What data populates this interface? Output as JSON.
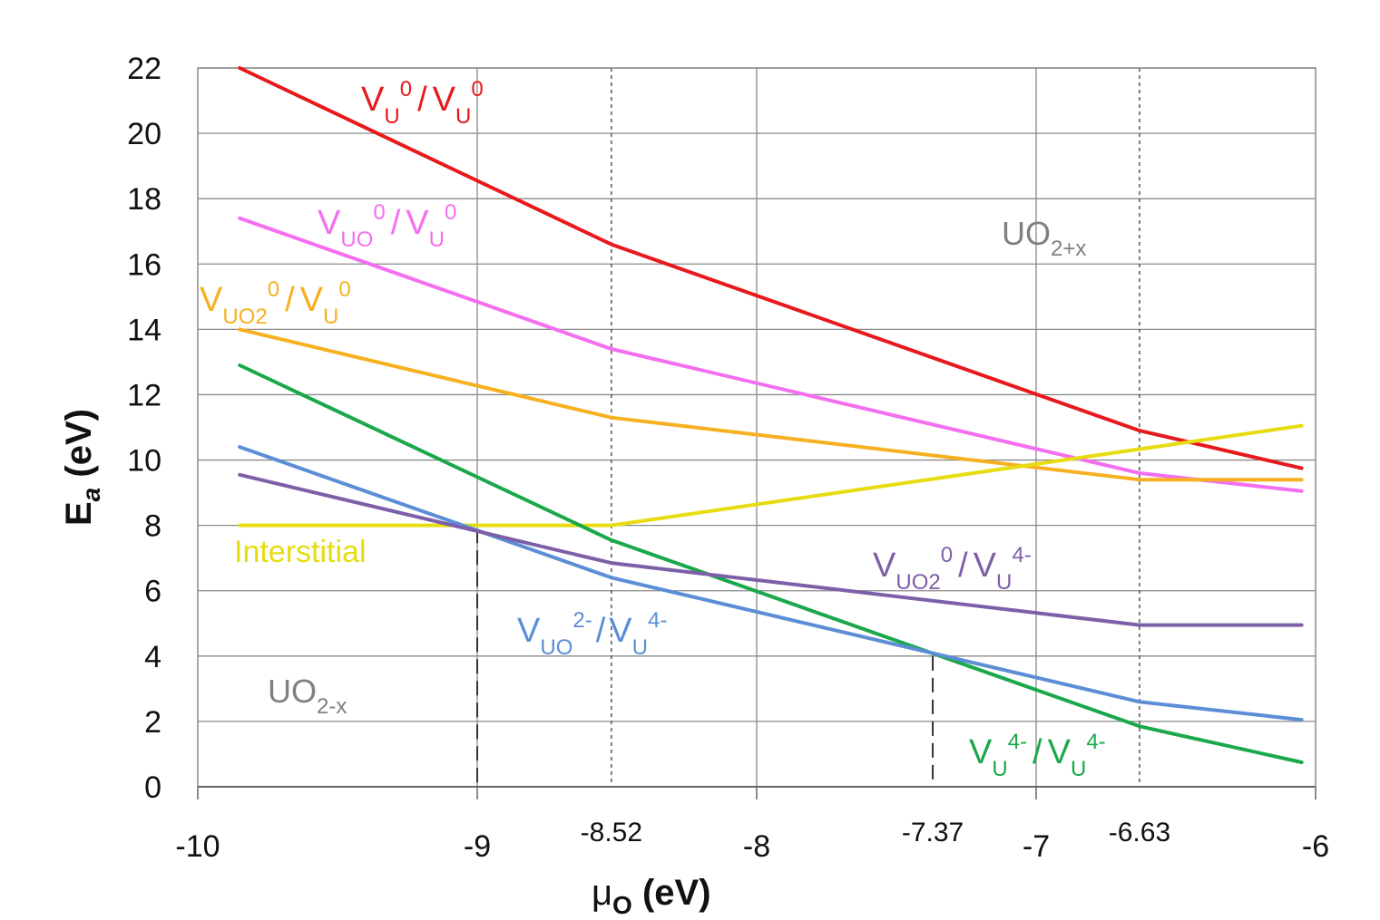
{
  "chart_data": {
    "type": "line",
    "xlabel": "μO (eV)",
    "ylabel": "Ea (eV)",
    "xlim": [
      -10,
      -6
    ],
    "ylim": [
      0,
      22
    ],
    "xticks": [
      -10,
      -9,
      -8,
      -7,
      -6
    ],
    "xtick_labels": [
      "-10",
      "-9",
      "-8",
      "-7",
      "-6"
    ],
    "yticks": [
      0,
      2,
      4,
      6,
      8,
      10,
      12,
      14,
      16,
      18,
      20,
      22
    ],
    "ytick_labels": [
      "0",
      "2",
      "4",
      "6",
      "8",
      "10",
      "12",
      "14",
      "16",
      "18",
      "20",
      "22"
    ],
    "extra_xticks": [
      -8.52,
      -7.37,
      -6.63
    ],
    "extra_xtick_labels": [
      "-8.52",
      "-7.37",
      "-6.63"
    ],
    "grid": true,
    "vlines_dotted": [
      -8.52,
      -6.63
    ],
    "vlines_dashed": [
      {
        "x": -9,
        "y_top": 7.9
      },
      {
        "x": -7.37,
        "y_top": 4.0
      }
    ],
    "series": [
      {
        "name": "V_U^0/V_U^0",
        "color": "#e8191c",
        "x": [
          -9.85,
          -8.52,
          -6.63,
          -6.05
        ],
        "y": [
          22,
          16.6,
          10.9,
          9.75
        ]
      },
      {
        "name": "V_UO^0/V_U^0",
        "color": "#f46ef0",
        "x": [
          -9.85,
          -8.52,
          -6.63,
          -6.05
        ],
        "y": [
          17.4,
          13.4,
          9.6,
          9.05
        ]
      },
      {
        "name": "V_UO2^0/V_U^0",
        "color": "#f6b020",
        "x": [
          -9.85,
          -8.52,
          -6.63,
          -6.05
        ],
        "y": [
          14,
          11.3,
          9.4,
          9.4
        ]
      },
      {
        "name": "Interstitial",
        "color": "#e6dc10",
        "x": [
          -9.85,
          -8.52,
          -6.05
        ],
        "y": [
          8,
          8,
          11.05
        ]
      },
      {
        "name": "V_U^4-/V_U^4-",
        "color": "#1aa84a",
        "x": [
          -9.85,
          -8.52,
          -6.63,
          -6.05
        ],
        "y": [
          12.9,
          7.55,
          1.85,
          0.75
        ]
      },
      {
        "name": "V_UO^2-/V_U^4-",
        "color": "#5b8ed6",
        "x": [
          -9.85,
          -8.52,
          -6.63,
          -6.05
        ],
        "y": [
          10.4,
          6.4,
          2.6,
          2.05
        ]
      },
      {
        "name": "V_UO2^0/V_U^4-",
        "color": "#7d5fa8",
        "x": [
          -9.85,
          -8.52,
          -6.63,
          -6.05
        ],
        "y": [
          9.55,
          6.85,
          4.95,
          4.95
        ]
      }
    ]
  },
  "labels": {
    "vu0": {
      "t1": "V",
      "s1": "U",
      "p1": "0",
      "t2": "/",
      "t3": "V",
      "s2": "U",
      "p2": "0"
    },
    "vuo0": {
      "t1": "V",
      "s1": "UO",
      "p1": "0",
      "t2": "/",
      "t3": "V",
      "s2": "U",
      "p2": "0"
    },
    "vuo20": {
      "t1": "V",
      "s1": "UO2",
      "p1": "0",
      "t2": "/",
      "t3": "V",
      "s2": "U",
      "p2": "0"
    },
    "interstitial": "Interstitial",
    "vuo2_vu4": {
      "t1": "V",
      "s1": "UO2",
      "p1": "0",
      "t2": "/",
      "t3": "V",
      "s2": "U",
      "p2": "4-"
    },
    "vuo_vu4": {
      "t1": "V",
      "s1": "UO",
      "p1": "2-",
      "t2": "/",
      "t3": "V",
      "s2": "U",
      "p2": "4-"
    },
    "vu4_vu4": {
      "t1": "V",
      "s1": "U",
      "p1": "4-",
      "t2": "/",
      "t3": "V",
      "s2": "U",
      "p2": "4-"
    },
    "uo2px": {
      "t": "UO",
      "s": "2+x"
    },
    "uo2mx": {
      "t": "UO",
      "s": "2-x"
    },
    "xaxis": {
      "mu": "μ",
      "sub": "O",
      "rest": " (eV)"
    },
    "yaxis": {
      "e": "E",
      "sub": "a",
      "rest": " (eV)"
    }
  }
}
